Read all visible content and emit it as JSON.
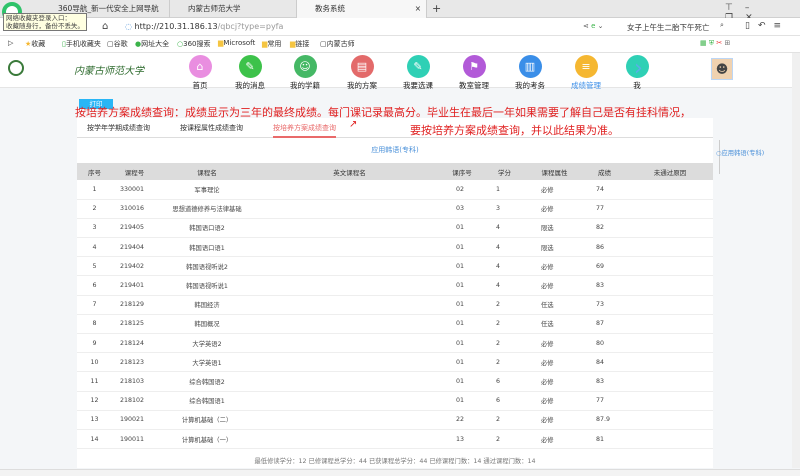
{
  "browser": {
    "tabs": [
      "360导航_新一代安全上网导航",
      "内蒙古师范大学",
      "教务系统"
    ],
    "tooltip": [
      "网络收藏夹登录入口：",
      "收藏随身行，备份不丢失。"
    ],
    "url_host": "http://210.31.186.13",
    "url_path": "/qbcj?type=pyfa",
    "search_text": "女子上午生二胎下午死亡",
    "bookmarks": [
      "收藏",
      "手机收藏夹",
      "谷歌",
      "网址大全",
      "360搜索",
      "Microsoft",
      "常用",
      "链接",
      "内蒙古师"
    ]
  },
  "header": {
    "logo_text": "内蒙古师范大学",
    "nav": [
      {
        "label": "首页",
        "color": "#e98ee0",
        "icon": "home-icon",
        "glyph": "⌂"
      },
      {
        "label": "我的消息",
        "color": "#3dc24a",
        "icon": "message-icon",
        "glyph": "✎"
      },
      {
        "label": "我的学籍",
        "color": "#45b865",
        "icon": "user-search-icon",
        "glyph": "☺"
      },
      {
        "label": "我的方案",
        "color": "#e36a6a",
        "icon": "clipboard-icon",
        "glyph": "▤"
      },
      {
        "label": "我要选课",
        "color": "#2fd0b5",
        "icon": "edit-icon",
        "glyph": "✎"
      },
      {
        "label": "教室管理",
        "color": "#b25ad8",
        "icon": "classroom-icon",
        "glyph": "⚑"
      },
      {
        "label": "我的考务",
        "color": "#3a8ee8",
        "icon": "book-icon",
        "glyph": "▥"
      },
      {
        "label": "成绩管理",
        "color": "#f5b731",
        "icon": "grades-icon",
        "glyph": "≡",
        "active": true
      },
      {
        "label": "我",
        "color": "#2fd0b5",
        "icon": "partial-icon",
        "glyph": ""
      }
    ]
  },
  "main": {
    "print_label": "打印",
    "annotation_line1": "按培养方案成绩查询：成绩显示为三年的最终成绩。每门课记录最高分。毕业生在最后一年如果需要了解自己是否有挂科情况，",
    "annotation_line2": "要按培养方案成绩查询，并以此结果为准。",
    "tabs": [
      "按学年学期成绩查询",
      "按课程属性成绩查询",
      "按培养方案成绩查询"
    ],
    "program_title": "应用韩语(专科)",
    "side_link": "应用韩语(专科)",
    "columns": [
      "序号",
      "课程号",
      "课程名",
      "英文课程名",
      "课序号",
      "学分",
      "课程属性",
      "成绩",
      "未通过原因"
    ],
    "rows": [
      [
        "1",
        "330001",
        "军事理论",
        "",
        "02",
        "1",
        "必修",
        "74",
        ""
      ],
      [
        "2",
        "310016",
        "思想道德修养与法律基础",
        "",
        "03",
        "3",
        "必修",
        "77",
        ""
      ],
      [
        "3",
        "219405",
        "韩国语口语2",
        "",
        "01",
        "4",
        "限选",
        "82",
        ""
      ],
      [
        "4",
        "219404",
        "韩国语口语1",
        "",
        "01",
        "4",
        "限选",
        "86",
        ""
      ],
      [
        "5",
        "219402",
        "韩国语视听说2",
        "",
        "01",
        "4",
        "必修",
        "69",
        ""
      ],
      [
        "6",
        "219401",
        "韩国语视听说1",
        "",
        "01",
        "4",
        "必修",
        "83",
        ""
      ],
      [
        "7",
        "218129",
        "韩国经济",
        "",
        "01",
        "2",
        "任选",
        "73",
        ""
      ],
      [
        "8",
        "218125",
        "韩国概况",
        "",
        "01",
        "2",
        "任选",
        "87",
        ""
      ],
      [
        "9",
        "218124",
        "大学英语2",
        "",
        "01",
        "2",
        "必修",
        "80",
        ""
      ],
      [
        "10",
        "218123",
        "大学英语1",
        "",
        "01",
        "2",
        "必修",
        "84",
        ""
      ],
      [
        "11",
        "218103",
        "综合韩国语2",
        "",
        "01",
        "6",
        "必修",
        "83",
        ""
      ],
      [
        "12",
        "218102",
        "综合韩国语1",
        "",
        "01",
        "6",
        "必修",
        "77",
        ""
      ],
      [
        "13",
        "190021",
        "计算机基础（二）",
        "",
        "22",
        "2",
        "必修",
        "87.9",
        ""
      ],
      [
        "14",
        "190011",
        "计算机基础（一）",
        "",
        "13",
        "2",
        "必修",
        "81",
        ""
      ]
    ],
    "summary": "最低修读学分：12 已修课程总学分：44 已获课程总学分：44 已修课程门数：14 通过课程门数：14"
  }
}
